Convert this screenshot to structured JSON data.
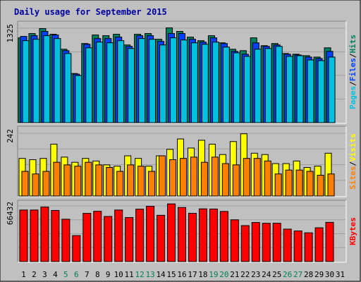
{
  "chart_data": {
    "type": "bar",
    "title": "Daily usage for September 2015",
    "categories": [
      "1",
      "2",
      "3",
      "4",
      "5",
      "6",
      "7",
      "8",
      "9",
      "10",
      "11",
      "12",
      "13",
      "14",
      "15",
      "16",
      "17",
      "18",
      "19",
      "20",
      "21",
      "22",
      "23",
      "24",
      "25",
      "26",
      "27",
      "28",
      "29",
      "30",
      "31"
    ],
    "weekend_days": [
      "5",
      "6",
      "12",
      "13",
      "19",
      "20",
      "26",
      "27"
    ],
    "panels": [
      {
        "id": "top",
        "ytick": "1325",
        "ymax": 1325,
        "legend": [
          {
            "text": "Pages",
            "color": "#00c0e0"
          },
          {
            "text": "/",
            "color": "#000000"
          },
          {
            "text": "Files",
            "color": "#0040ff"
          },
          {
            "text": "/",
            "color": "#000000"
          },
          {
            "text": "Hits",
            "color": "#008060"
          }
        ],
        "series": [
          {
            "name": "Hits",
            "color": "#008060",
            "values": [
              1190,
              1250,
              1320,
              1240,
              1030,
              690,
              1110,
              1230,
              1220,
              1240,
              1090,
              1240,
              1250,
              1170,
              1330,
              1280,
              1200,
              1150,
              1220,
              1120,
              1030,
              1010,
              1190,
              1080,
              1110,
              970,
              960,
              940,
              920,
              1050,
              null
            ]
          },
          {
            "name": "Files",
            "color": "#0040ff",
            "values": [
              1210,
              1220,
              1280,
              1230,
              1010,
              680,
              1100,
              1180,
              1180,
              1200,
              1070,
              1220,
              1220,
              1140,
              1250,
              1250,
              1170,
              1130,
              1190,
              1110,
              1000,
              960,
              1120,
              1070,
              1090,
              960,
              950,
              920,
              900,
              1000,
              null
            ]
          },
          {
            "name": "Pages",
            "color": "#00c0e0",
            "values": [
              1150,
              1170,
              1220,
              1180,
              970,
              660,
              1050,
              1130,
              1120,
              1150,
              1040,
              1180,
              1170,
              1090,
              1190,
              1160,
              1120,
              1100,
              1130,
              1060,
              980,
              930,
              1030,
              1040,
              1070,
              930,
              940,
              880,
              870,
              920,
              null
            ]
          }
        ]
      },
      {
        "id": "mid",
        "ytick": "242",
        "ymax": 242,
        "legend": [
          {
            "text": "Sites",
            "color": "#ff8000"
          },
          {
            "text": "/",
            "color": "#000000"
          },
          {
            "text": "Visits",
            "color": "#ffff00"
          }
        ],
        "series": [
          {
            "name": "Visits",
            "color": "#ffff00",
            "values": [
              145,
              140,
              145,
              200,
              150,
              130,
              145,
              135,
              120,
              115,
              155,
              145,
              115,
              155,
              180,
              220,
              185,
              215,
              200,
              160,
              210,
              240,
              165,
              160,
              125,
              125,
              135,
              110,
              115,
              165,
              null
            ]
          },
          {
            "name": "Sites",
            "color": "#ff8000",
            "values": [
              95,
              85,
              95,
              130,
              120,
              115,
              130,
              120,
              110,
              95,
              120,
              115,
              95,
              155,
              140,
              145,
              150,
              130,
              150,
              125,
              120,
              145,
              145,
              135,
              85,
              100,
              100,
              95,
              80,
              85,
              null
            ]
          }
        ]
      },
      {
        "id": "bot",
        "ytick": "66432",
        "ymax": 66432,
        "legend": [
          {
            "text": "KBytes",
            "color": "#ff0000"
          }
        ],
        "series": [
          {
            "name": "KBytes",
            "color": "#ff0000",
            "values": [
              61500,
              61500,
              65000,
              61000,
              50500,
              31000,
              57500,
              60000,
              53800,
              61500,
              52500,
              62500,
              66000,
              55200,
              68800,
              64500,
              57600,
              62900,
              62700,
              59800,
              49800,
              42900,
              46600,
              45700,
              45700,
              38700,
              36500,
              34300,
              40300,
              46800,
              null
            ]
          }
        ]
      }
    ]
  }
}
